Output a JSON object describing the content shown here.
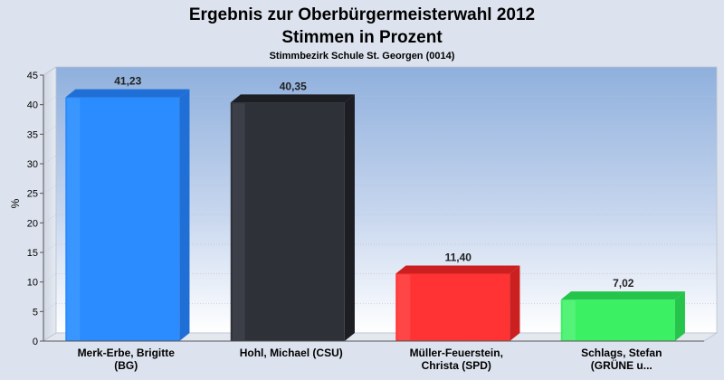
{
  "chart_data": {
    "type": "bar",
    "title_line1": "Ergebnis zur Oberbürgermeisterwahl 2012",
    "title_line2": "Stimmen in Prozent",
    "subtitle": "Stimmbezirk Schule St. Georgen (0014)",
    "ylabel": "%",
    "ylim": [
      0,
      45
    ],
    "yticks": [
      "0",
      "5",
      "10",
      "15",
      "20",
      "25",
      "30",
      "35",
      "40",
      "45"
    ],
    "grid": true,
    "categories": [
      [
        "Merk-Erbe, Brigitte",
        "(BG)"
      ],
      [
        "Hohl, Michael (CSU)"
      ],
      [
        "Müller-Feuerstein,",
        "Christa (SPD)"
      ],
      [
        "Schlags, Stefan",
        "(GRÜNE u..."
      ]
    ],
    "values": [
      41.23,
      40.35,
      11.4,
      7.02
    ],
    "value_labels": [
      "41,23",
      "40,35",
      "11,40",
      "7,02"
    ],
    "colors": [
      "#2b8cff",
      "#2e3138",
      "#ff3333",
      "#3cf064"
    ],
    "colors_dark": [
      "#1f6fd6",
      "#1c1e23",
      "#cc2020",
      "#25c44a"
    ],
    "colors_light": [
      "#4aa0ff",
      "#4a4d55",
      "#ff5a5a",
      "#6cf58b"
    ]
  }
}
